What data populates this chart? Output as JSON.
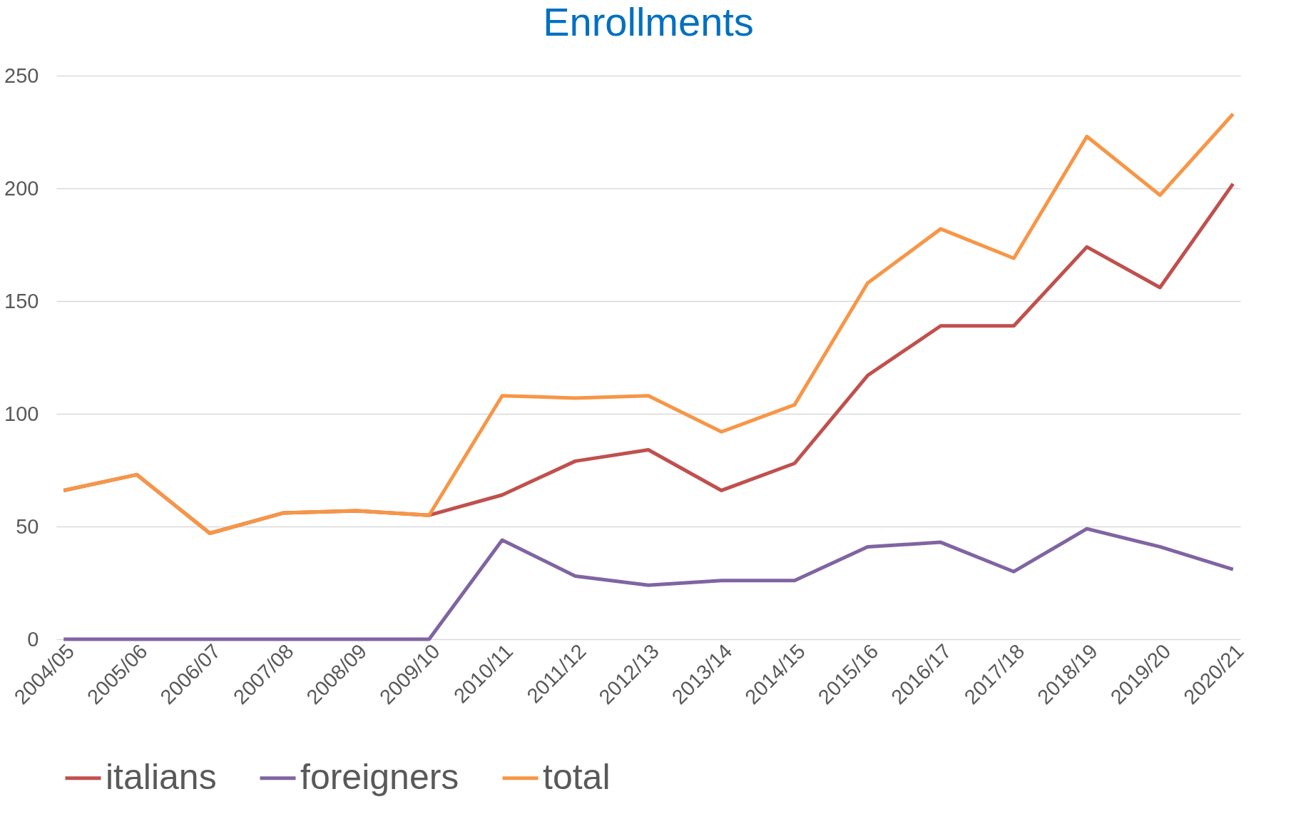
{
  "chart_data": {
    "type": "line",
    "title": "Enrollments",
    "categories": [
      "2004/05",
      "2005/06",
      "2006/07",
      "2007/08",
      "2008/09",
      "2009/10",
      "2010/11",
      "2011/12",
      "2012/13",
      "2013/14",
      "2014/15",
      "2015/16",
      "2016/17",
      "2017/18",
      "2018/19",
      "2019/20",
      "2020/21"
    ],
    "series": [
      {
        "name": "italians",
        "color": "#c0504d",
        "values": [
          66,
          73,
          47,
          56,
          57,
          55,
          64,
          79,
          84,
          66,
          78,
          117,
          139,
          139,
          174,
          156,
          202
        ]
      },
      {
        "name": "foreigners",
        "color": "#8064a2",
        "values": [
          0,
          0,
          0,
          0,
          0,
          0,
          44,
          28,
          24,
          26,
          26,
          41,
          43,
          30,
          49,
          41,
          31
        ]
      },
      {
        "name": "total",
        "color": "#f79646",
        "values": [
          66,
          73,
          47,
          56,
          57,
          55,
          108,
          107,
          108,
          92,
          104,
          158,
          182,
          169,
          223,
          197,
          233
        ]
      }
    ],
    "ylim": [
      0,
      250
    ],
    "yticks": [
      0,
      50,
      100,
      150,
      200,
      250
    ],
    "grid": "y",
    "legend": "bottom",
    "marker": "none",
    "line_style": "solid"
  }
}
